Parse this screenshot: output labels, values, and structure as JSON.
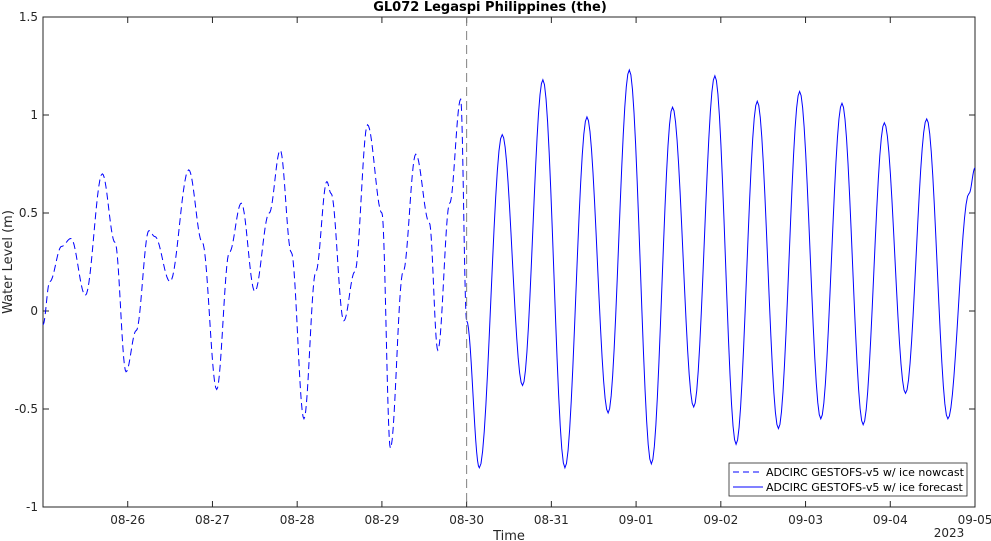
{
  "chart_data": {
    "type": "line",
    "title": "GL072 Legaspi Philippines (the)",
    "xlabel": "Time",
    "ylabel": "Water Level (m)",
    "xlim_days": [
      25.0,
      36.0
    ],
    "ylim": [
      -1,
      1.5
    ],
    "yticks": [
      -1,
      -0.5,
      0,
      0.5,
      1,
      1.5
    ],
    "ytick_labels": [
      "-1",
      "-0.5",
      "0",
      "0.5",
      "1",
      "1.5"
    ],
    "xtick_days": [
      26,
      27,
      28,
      29,
      30,
      31,
      32,
      33,
      34,
      35,
      36
    ],
    "xtick_labels": [
      "08-26",
      "08-27",
      "08-28",
      "08-29",
      "08-30",
      "08-31",
      "09-01",
      "09-02",
      "09-03",
      "09-04",
      "09-05"
    ],
    "year_label": "2023",
    "nowcast_end_day": 30.0,
    "colors": {
      "series": "#0000ff",
      "divider": "#808080",
      "axis": "#262626"
    },
    "legend_position": "bottom-right",
    "series": [
      {
        "name": "ADCIRC GESTOFS-v5 w/ ice nowcast",
        "style": "dashed",
        "x": [
          25.0,
          25.08,
          25.22,
          25.33,
          25.5,
          25.7,
          25.85,
          25.98,
          26.1,
          26.25,
          26.32,
          26.5,
          26.72,
          26.88,
          27.05,
          27.2,
          27.34,
          27.5,
          27.67,
          27.8,
          27.93,
          28.08,
          28.22,
          28.35,
          28.4,
          28.55,
          28.68,
          28.83,
          29.0,
          29.1,
          29.25,
          29.4,
          29.56,
          29.66,
          29.8,
          29.93,
          30.0
        ],
        "y": [
          -0.07,
          0.15,
          0.33,
          0.37,
          0.08,
          0.7,
          0.35,
          -0.31,
          -0.1,
          0.41,
          0.38,
          0.15,
          0.72,
          0.35,
          -0.4,
          0.3,
          0.55,
          0.1,
          0.5,
          0.82,
          0.3,
          -0.55,
          0.2,
          0.66,
          0.6,
          -0.05,
          0.2,
          0.95,
          0.5,
          -0.7,
          0.2,
          0.8,
          0.45,
          -0.2,
          0.55,
          1.08,
          -0.05
        ]
      },
      {
        "name": "ADCIRC GESTOFS-v5 w/ ice forecast",
        "style": "solid",
        "x": [
          30.0,
          30.15,
          30.42,
          30.66,
          30.9,
          31.16,
          31.42,
          31.67,
          31.92,
          32.18,
          32.43,
          32.68,
          32.93,
          33.18,
          33.43,
          33.68,
          33.93,
          34.18,
          34.43,
          34.68,
          34.93,
          35.18,
          35.43,
          35.68,
          35.93,
          36.0
        ],
        "y": [
          -0.05,
          -0.8,
          0.9,
          -0.38,
          1.18,
          -0.8,
          0.99,
          -0.52,
          1.23,
          -0.78,
          1.04,
          -0.49,
          1.2,
          -0.68,
          1.07,
          -0.6,
          1.12,
          -0.55,
          1.06,
          -0.58,
          0.96,
          -0.42,
          0.98,
          -0.55,
          0.6,
          0.73
        ]
      }
    ]
  }
}
